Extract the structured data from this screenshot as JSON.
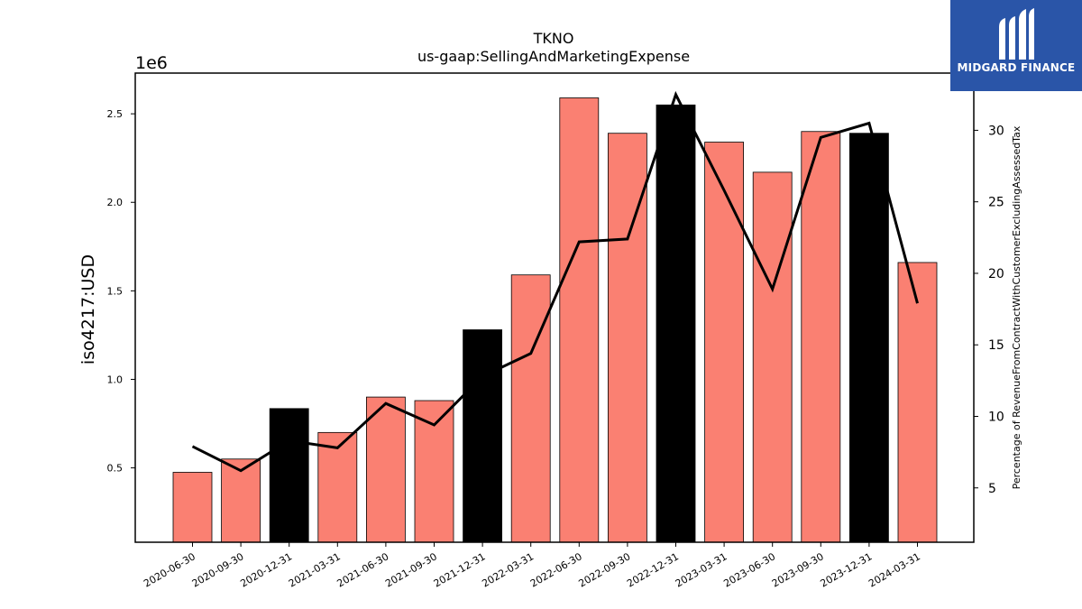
{
  "chart_data": {
    "type": "bar",
    "title": "TKNO",
    "subtitle": "us-gaap:SellingAndMarketingExpense",
    "ylabel": "iso4217:USD",
    "y_offset_label": "1e6",
    "y2label": "Percentage of RevenueFromContractWithCustomerExcludingAssessedTax",
    "categories": [
      "2020-06-30",
      "2020-09-30",
      "2020-12-31",
      "2021-03-31",
      "2021-06-30",
      "2021-09-30",
      "2021-12-31",
      "2022-03-31",
      "2022-06-30",
      "2022-09-30",
      "2022-12-31",
      "2023-03-31",
      "2023-06-30",
      "2023-09-30",
      "2023-12-31",
      "2024-03-31"
    ],
    "bar_values": [
      475000,
      550000,
      835000,
      700000,
      900000,
      880000,
      1280000,
      1590000,
      2590000,
      2390000,
      2550000,
      2340000,
      2170000,
      2400000,
      2390000,
      1660000
    ],
    "bar_colors": [
      "#fa8072",
      "#fa8072",
      "#000000",
      "#fa8072",
      "#fa8072",
      "#fa8072",
      "#000000",
      "#fa8072",
      "#fa8072",
      "#fa8072",
      "#000000",
      "#fa8072",
      "#fa8072",
      "#fa8072",
      "#000000",
      "#fa8072"
    ],
    "line_values": [
      7.9,
      6.2,
      8.3,
      7.8,
      10.9,
      9.4,
      12.8,
      14.4,
      22.2,
      22.4,
      32.5,
      25.8,
      18.9,
      29.5,
      30.5,
      17.9
    ],
    "ylim": [
      80000,
      2730000
    ],
    "y2lim": [
      1.2,
      34.0
    ],
    "yticks": [
      {
        "value": 500000,
        "label": "0.5"
      },
      {
        "value": 1000000,
        "label": "1.0"
      },
      {
        "value": 1500000,
        "label": "1.5"
      },
      {
        "value": 2000000,
        "label": "2.0"
      },
      {
        "value": 2500000,
        "label": "2.5"
      }
    ],
    "y2ticks": [
      {
        "value": 5,
        "label": "5"
      },
      {
        "value": 10,
        "label": "10"
      },
      {
        "value": 15,
        "label": "15"
      },
      {
        "value": 20,
        "label": "20"
      },
      {
        "value": 25,
        "label": "25"
      },
      {
        "value": 30,
        "label": "30"
      }
    ],
    "grid": false,
    "line_color": "#000000"
  },
  "logo": {
    "text": "MIDGARD FINANCE",
    "background": "#2a55a8",
    "icon": "midgard-logo-icon"
  }
}
